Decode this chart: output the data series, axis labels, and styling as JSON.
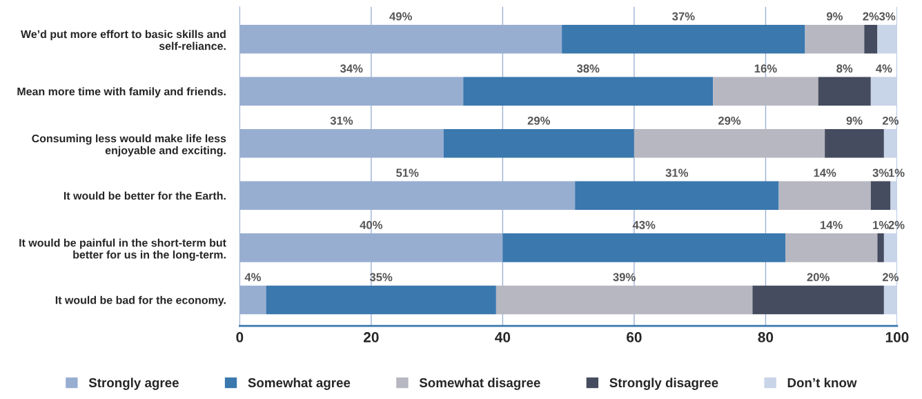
{
  "chart_data": {
    "type": "bar",
    "orientation": "horizontal",
    "stacked": true,
    "categories": [
      "We’d put more effort to basic skills and\nself-reliance.",
      "Mean more time with family and friends.",
      "Consuming less would make life less\nenjoyable and exciting.",
      "It would be better for the Earth.",
      "It would be painful in the short-term but\nbetter for us in the long-term.",
      "It would be bad for the economy."
    ],
    "series": [
      {
        "name": "Strongly agree",
        "color": "#98aed1",
        "values": [
          49,
          34,
          31,
          51,
          40,
          4
        ],
        "value_labels": [
          "49%",
          "34%",
          "31%",
          "51%",
          "40%",
          "4%"
        ]
      },
      {
        "name": "Somewhat agree",
        "color": "#3a78ae",
        "values": [
          37,
          38,
          29,
          31,
          43,
          35
        ],
        "value_labels": [
          "37%",
          "38%",
          "29%",
          "31%",
          "43%",
          "35%"
        ]
      },
      {
        "name": "Somewhat disagree",
        "color": "#b7b7c2",
        "values": [
          9,
          16,
          29,
          14,
          14,
          39
        ],
        "value_labels": [
          "9%",
          "16%",
          "29%",
          "14%",
          "14%",
          "39%"
        ]
      },
      {
        "name": "Strongly disagree",
        "color": "#464c5f",
        "values": [
          2,
          8,
          9,
          3,
          1,
          20
        ],
        "value_labels": [
          "2%",
          "8%",
          "9%",
          "3%",
          "1%",
          "20%"
        ]
      },
      {
        "name": "Don’t know",
        "color": "#c8d4e8",
        "values": [
          3,
          4,
          2,
          1,
          2,
          2
        ],
        "value_labels": [
          "3%",
          "4%",
          "2%",
          "1%",
          "2%",
          "2%"
        ]
      }
    ],
    "xlim": [
      0,
      100
    ],
    "xticks": [
      0,
      20,
      40,
      60,
      80,
      100
    ],
    "grid": "x",
    "legend": "bottom"
  }
}
